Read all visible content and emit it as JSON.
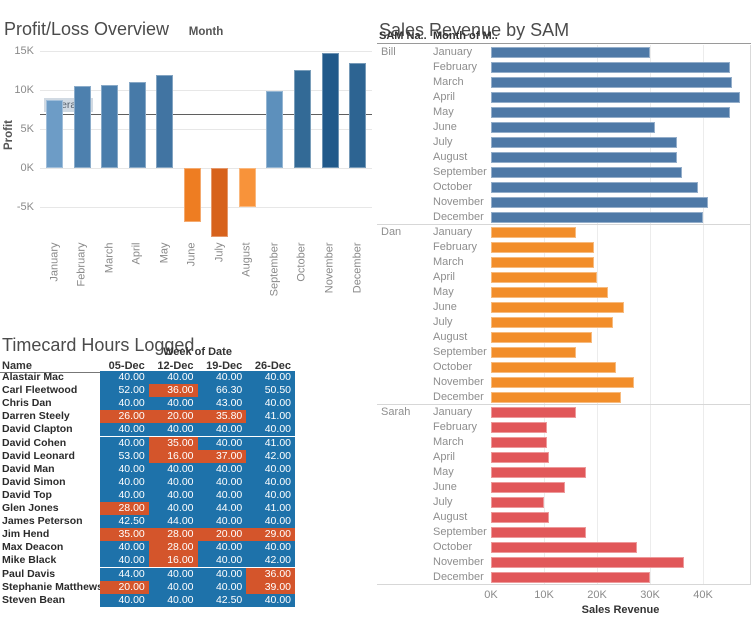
{
  "colors": {
    "bill_blue": "#4e79a7",
    "dan_orange": "#f28e2b",
    "sarah_red": "#e15759",
    "table_blue": "#1e72aa",
    "table_orange": "#d4552b",
    "grid_gray": "#e7e7e7",
    "label_gray": "#8a8a8a",
    "title_gray": "#4b4b4b"
  },
  "chart_data": [
    {
      "type": "bar",
      "title": "Profit/Loss Overview",
      "x_axis_title": "Month",
      "y_axis_title": "Profit",
      "y_ticks": [
        "15K",
        "10K",
        "5K",
        "0K",
        "-5K"
      ],
      "y_tick_values_k": [
        15,
        10,
        5,
        0,
        -5
      ],
      "ylim_k": [
        -9.5,
        15.8
      ],
      "grid": true,
      "months": [
        "January",
        "February",
        "March",
        "April",
        "May",
        "June",
        "July",
        "August",
        "September",
        "October",
        "November",
        "December"
      ],
      "values_k": [
        8.7,
        10.5,
        10.7,
        11.0,
        11.9,
        -6.9,
        -8.8,
        -5.0,
        9.9,
        12.6,
        14.8,
        13.4
      ],
      "bar_colors": [
        "#6d9cc6",
        "#4d80ae",
        "#4a7dab",
        "#477aa8",
        "#4174a2",
        "#ee7d22",
        "#d7621c",
        "#f8933a",
        "#5d90bc",
        "#336a96",
        "#21598a",
        "#2d6492"
      ],
      "reference_line": {
        "label": "Average",
        "value_k": 6.9
      }
    },
    {
      "type": "bar-horizontal",
      "title": "Sales Revenue by SAM",
      "col_headers": {
        "sam": "SAM Na..",
        "month": "Month of M.."
      },
      "x_axis_title": "Sales Revenue",
      "x_ticks": [
        "0K",
        "10K",
        "20K",
        "30K",
        "40K"
      ],
      "x_tick_values_k": [
        0,
        10,
        20,
        30,
        40
      ],
      "xlim_k": [
        0,
        48.9
      ],
      "grid": true,
      "months": [
        "January",
        "February",
        "March",
        "April",
        "May",
        "June",
        "July",
        "August",
        "September",
        "October",
        "November",
        "December"
      ],
      "groups": [
        {
          "name": "Bill",
          "color": "#4e79a7",
          "values_k": [
            30,
            45,
            45.5,
            47,
            45,
            31,
            35,
            35,
            36,
            39,
            41,
            40
          ]
        },
        {
          "name": "Dan",
          "color": "#f28e2b",
          "values_k": [
            16,
            19.5,
            19.5,
            20,
            22,
            25,
            23,
            19,
            16,
            23.5,
            27,
            24.5
          ]
        },
        {
          "name": "Sarah",
          "color": "#e15759",
          "values_k": [
            16,
            10.5,
            10.5,
            11,
            18,
            14,
            10,
            11,
            18,
            27.5,
            36.5,
            30
          ]
        }
      ]
    },
    {
      "type": "table",
      "title": "Timecard Hours Logged",
      "week_header": "Week of Date",
      "name_header": "Name",
      "week_columns": [
        "05-Dec",
        "12-Dec",
        "19-Dec",
        "26-Dec"
      ],
      "low_threshold": 40,
      "cell_colors": {
        "normal": "#1e72aa",
        "low": "#d4552b"
      },
      "rows": [
        {
          "name": "Alastair Mac",
          "hours": [
            "40.00",
            "40.00",
            "40.00",
            "40.00"
          ]
        },
        {
          "name": "Carl Fleetwood",
          "hours": [
            "52.00",
            "36.00",
            "66.30",
            "50.50"
          ]
        },
        {
          "name": "Chris Dan",
          "hours": [
            "40.00",
            "40.00",
            "43.00",
            "40.00"
          ]
        },
        {
          "name": "Darren Steely",
          "hours": [
            "26.00",
            "20.00",
            "35.80",
            "41.00"
          ]
        },
        {
          "name": "David Clapton",
          "hours": [
            "40.00",
            "40.00",
            "40.00",
            "40.00"
          ]
        },
        {
          "name": "David Cohen",
          "hours": [
            "40.00",
            "35.00",
            "40.00",
            "41.00"
          ]
        },
        {
          "name": "David Leonard",
          "hours": [
            "53.00",
            "16.00",
            "37.00",
            "42.00"
          ]
        },
        {
          "name": "David Man",
          "hours": [
            "40.00",
            "40.00",
            "40.00",
            "40.00"
          ]
        },
        {
          "name": "David Simon",
          "hours": [
            "40.00",
            "40.00",
            "40.00",
            "40.00"
          ]
        },
        {
          "name": "David Top",
          "hours": [
            "40.00",
            "40.00",
            "40.00",
            "40.00"
          ]
        },
        {
          "name": "Glen Jones",
          "hours": [
            "28.00",
            "40.00",
            "44.00",
            "41.00"
          ]
        },
        {
          "name": "James Peterson",
          "hours": [
            "42.50",
            "44.00",
            "40.00",
            "40.00"
          ]
        },
        {
          "name": "Jim Hend",
          "hours": [
            "35.00",
            "28.00",
            "20.00",
            "29.00"
          ]
        },
        {
          "name": "Max Deacon",
          "hours": [
            "40.00",
            "28.00",
            "40.00",
            "40.00"
          ]
        },
        {
          "name": "Mike Black",
          "hours": [
            "40.00",
            "16.00",
            "40.00",
            "42.00"
          ]
        },
        {
          "name": "Paul Davis",
          "hours": [
            "44.00",
            "40.00",
            "40.00",
            "36.00"
          ]
        },
        {
          "name": "Stephanie Matthews",
          "hours": [
            "20.00",
            "40.00",
            "40.00",
            "39.00"
          ]
        },
        {
          "name": "Steven Bean",
          "hours": [
            "40.00",
            "40.00",
            "42.50",
            "40.00"
          ]
        }
      ]
    }
  ]
}
